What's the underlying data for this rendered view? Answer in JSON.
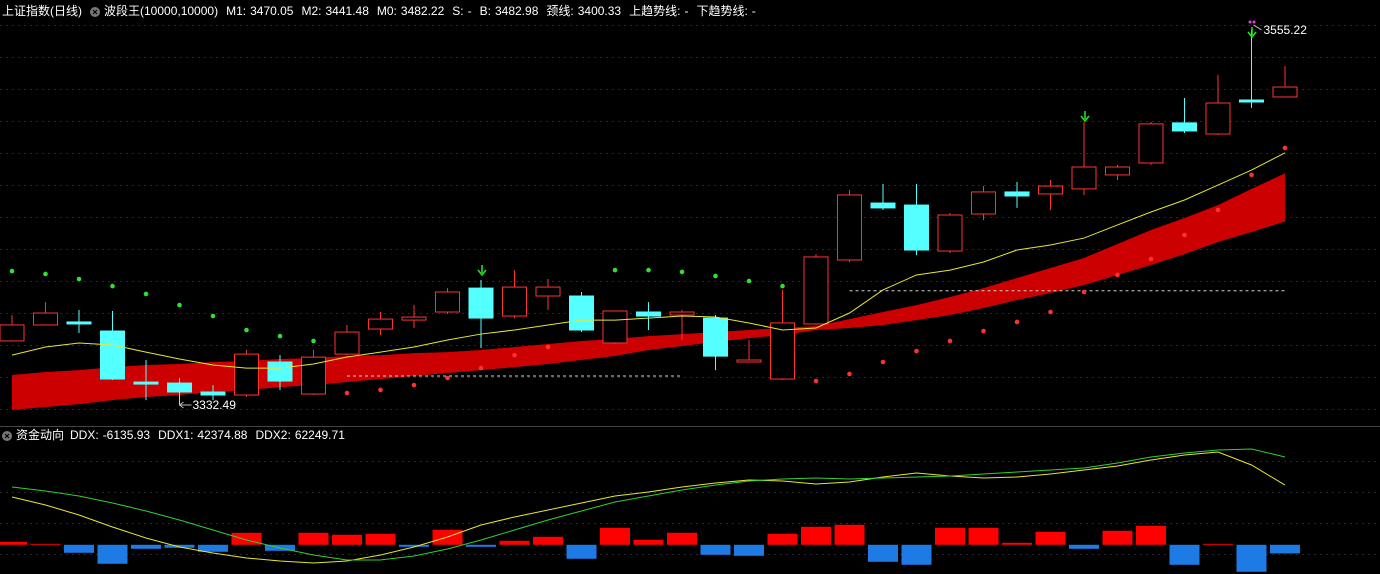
{
  "chart_data": [
    {
      "type": "candlestick",
      "title": "上证指数(日线)",
      "indicator": "波段王(10000,10000)",
      "ylim": [
        3320.6,
        3561.1
      ],
      "up_color": "#ff3232",
      "down_color": "#54ffff",
      "ribbon_color": "#cc0000",
      "open": [
        3370.5,
        3380.0,
        3381.8,
        3376.4,
        3346.1,
        3345.5,
        3340.2,
        3338.4,
        3358.0,
        3339.0,
        3362.7,
        3377.6,
        3382.9,
        3387.7,
        3401.9,
        3385.3,
        3397.2,
        3397.2,
        3369.3,
        3387.7,
        3385.9,
        3384.1,
        3358.0,
        3347.9,
        3380.6,
        3418.6,
        3452.4,
        3451.2,
        3423.9,
        3445.9,
        3459.0,
        3457.8,
        3460.8,
        3469.1,
        3476.2,
        3500.0,
        3493.4,
        3513.6,
        3515.4
      ],
      "high": [
        3385.9,
        3393.6,
        3388.9,
        3388.3,
        3359.2,
        3348.5,
        3344.3,
        3365.1,
        3362.1,
        3365.1,
        3380.0,
        3387.7,
        3391.9,
        3401.9,
        3406.7,
        3412.6,
        3407.3,
        3399.6,
        3388.3,
        3393.6,
        3388.9,
        3385.9,
        3371.1,
        3400.8,
        3422.1,
        3460.2,
        3463.7,
        3463.7,
        3446.5,
        3462.5,
        3464.9,
        3466.1,
        3500.6,
        3475.0,
        3500.6,
        3514.8,
        3528.5,
        3555.22,
        3533.8
      ],
      "low": [
        3370.5,
        3380.0,
        3375.2,
        3347.3,
        3335.4,
        3332.49,
        3335.4,
        3337.2,
        3341.4,
        3338.4,
        3362.1,
        3374.0,
        3378.2,
        3386.5,
        3366.3,
        3384.1,
        3388.9,
        3375.8,
        3368.7,
        3377.0,
        3371.1,
        3353.2,
        3358.0,
        3347.3,
        3380.0,
        3417.4,
        3448.3,
        3421.5,
        3422.7,
        3442.3,
        3449.5,
        3448.3,
        3457.2,
        3466.1,
        3475.0,
        3494.0,
        3492.8,
        3508.9,
        3515.4
      ],
      "close": [
        3380.0,
        3387.1,
        3380.6,
        3347.9,
        3344.9,
        3340.2,
        3338.4,
        3362.7,
        3346.7,
        3360.9,
        3375.8,
        3383.5,
        3384.7,
        3399.6,
        3384.1,
        3402.5,
        3402.5,
        3377.0,
        3388.3,
        3385.3,
        3387.7,
        3361.5,
        3359.2,
        3381.2,
        3420.4,
        3457.2,
        3449.5,
        3424.5,
        3445.3,
        3459.0,
        3456.6,
        3462.5,
        3473.8,
        3473.8,
        3499.4,
        3495.2,
        3511.8,
        3512.4,
        3521.3
      ],
      "series": [
        {
          "name": "M1:",
          "label_color": "#ffffff",
          "style": "ribbon-top",
          "values": [
            3350.3,
            3352.1,
            3353.2,
            3355.0,
            3356.2,
            3356.8,
            3358.0,
            3358.6,
            3359.8,
            3360.4,
            3361.6,
            3362.1,
            3363.3,
            3363.9,
            3365.1,
            3366.9,
            3368.7,
            3370.5,
            3371.7,
            3373.4,
            3374.6,
            3375.8,
            3377.0,
            3378.2,
            3379.4,
            3383.5,
            3387.7,
            3391.8,
            3396.6,
            3401.9,
            3407.9,
            3413.8,
            3419.8,
            3428.1,
            3436.4,
            3443.5,
            3451.2,
            3460.8,
            3470.05
          ]
        },
        {
          "name": "M2:",
          "label_color": "#ffffff",
          "style": "ribbon-bottom",
          "values": [
            3329.5,
            3331.3,
            3333.0,
            3335.4,
            3337.2,
            3338.4,
            3340.2,
            3341.4,
            3343.1,
            3344.3,
            3346.1,
            3347.9,
            3349.7,
            3351.5,
            3353.2,
            3355.0,
            3356.8,
            3359.2,
            3361.6,
            3365.1,
            3367.5,
            3369.9,
            3372.2,
            3374.0,
            3377.0,
            3378.2,
            3380.0,
            3382.9,
            3385.9,
            3390.1,
            3394.8,
            3399.0,
            3403.7,
            3409.7,
            3415.6,
            3422.1,
            3429.3,
            3435.2,
            3441.48
          ]
        },
        {
          "name": "M0:",
          "label_color": "#e6e632",
          "color": "#e6e632",
          "style": "line",
          "values": [
            3362.1,
            3366.9,
            3369.3,
            3368.1,
            3363.9,
            3359.8,
            3356.2,
            3354.4,
            3354.4,
            3356.8,
            3361.0,
            3363.9,
            3366.9,
            3371.1,
            3374.6,
            3377.0,
            3380.0,
            3382.9,
            3382.9,
            3384.1,
            3385.3,
            3384.7,
            3381.2,
            3377.0,
            3378.2,
            3387.1,
            3400.8,
            3409.7,
            3412.6,
            3417.4,
            3424.5,
            3427.5,
            3431.6,
            3439.4,
            3447.1,
            3454.2,
            3463.1,
            3472.0,
            3482.22
          ]
        }
      ],
      "legend_items": [
        {
          "name": "S:",
          "value": "-",
          "color": "#00c800"
        },
        {
          "name": "B:",
          "value": 3482.98,
          "color": "#ff3232"
        },
        {
          "name": "颈线:",
          "value": 3400.33,
          "color": "#ffffff",
          "line": true
        },
        {
          "name": "上趋势线:",
          "value": "-",
          "color": "#ffffff"
        },
        {
          "name": "下趋势线:",
          "value": "-",
          "color": "#ffffff"
        }
      ],
      "levels": [
        3349.7
      ],
      "dots": [
        {
          "color": "#30e030",
          "values": [
            3412.0,
            3410.3,
            3407.3,
            3403.1,
            3398.4,
            3391.8,
            3385.3,
            3377.0,
            3373.4,
            3370.5,
            null,
            null,
            null,
            null,
            null,
            null,
            null,
            null,
            3412.6,
            3412.6,
            3411.5,
            3409.1,
            3406.1,
            3403.1,
            null,
            null,
            null,
            null,
            null,
            null,
            null,
            null,
            null,
            null,
            null,
            null,
            null,
            null,
            null
          ]
        },
        {
          "color": "#ff3030",
          "values": [
            null,
            null,
            null,
            null,
            null,
            null,
            null,
            null,
            null,
            null,
            3339.6,
            3341.4,
            3344.3,
            3348.5,
            3354.4,
            3362.1,
            3366.9,
            null,
            null,
            null,
            null,
            null,
            null,
            null,
            3346.7,
            3350.9,
            3358.0,
            3364.5,
            3370.5,
            3376.4,
            3381.8,
            3387.7,
            3399.6,
            3409.7,
            3419.2,
            3433.4,
            3448.3,
            3469.1,
            3485.1
          ]
        }
      ]
    },
    {
      "type": "bar-line",
      "title": "资金动向",
      "ylim": [
        -19300,
        74300
      ],
      "series": [
        {
          "name": "DDX:",
          "type": "bar",
          "label_color": "#ffffff",
          "up_color": "#ff0000",
          "down_color": "#1e7be6",
          "values": [
            2130,
            710,
            -5670,
            -13470,
            -2840,
            -2130,
            -4960,
            8510,
            -4250,
            8510,
            7090,
            7800,
            -1420,
            10640,
            -1420,
            2840,
            5670,
            -9930,
            12050,
            3550,
            8510,
            -7090,
            -7800,
            7800,
            12760,
            14180,
            -12050,
            -14180,
            12050,
            12050,
            1420,
            9220,
            -2840,
            9930,
            13470,
            -14180,
            710,
            -19140,
            -6135.93
          ]
        },
        {
          "name": "DDX1:",
          "type": "line",
          "label_color": "#e6e632",
          "color": "#e6e632",
          "values": [
            33890,
            28220,
            21130,
            12620,
            4820,
            -1560,
            -5810,
            -9360,
            -11490,
            -12900,
            -11490,
            -7230,
            -1560,
            5530,
            14040,
            19710,
            24670,
            29640,
            34600,
            37440,
            40980,
            43820,
            45940,
            45230,
            43110,
            44530,
            48070,
            50910,
            48780,
            47360,
            48070,
            50200,
            53030,
            55870,
            60120,
            63670,
            65800,
            56580,
            42374.88
          ]
        },
        {
          "name": "DDX2:",
          "type": "line",
          "label_color": "#30d030",
          "color": "#30d030",
          "values": [
            40980,
            38140,
            34600,
            29640,
            23960,
            17580,
            10490,
            3400,
            -2270,
            -7230,
            -10780,
            -10780,
            -7940,
            -2980,
            3400,
            10490,
            17580,
            23960,
            30350,
            34600,
            38850,
            42400,
            45230,
            46650,
            47360,
            46650,
            47360,
            48070,
            48780,
            50200,
            51620,
            53030,
            54450,
            58000,
            62250,
            65090,
            67210,
            67920,
            62249.71
          ]
        }
      ]
    }
  ]
}
